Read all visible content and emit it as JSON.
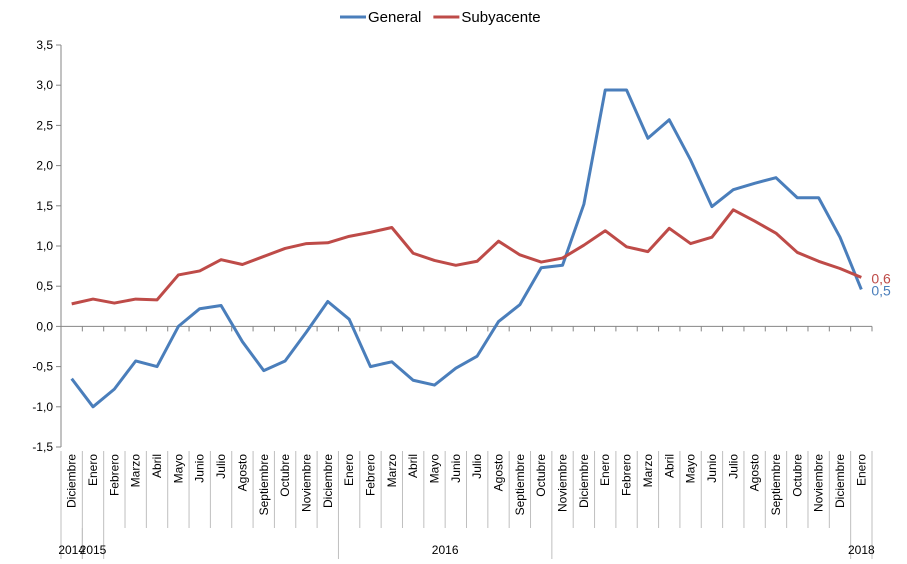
{
  "chart_data": {
    "type": "line",
    "categories": [
      "Diciembre",
      "Enero",
      "Febrero",
      "Marzo",
      "Abril",
      "Mayo",
      "Junio",
      "Julio",
      "Agosto",
      "Septiembre",
      "Octubre",
      "Noviembre",
      "Diciembre",
      "Enero",
      "Febrero",
      "Marzo",
      "Abril",
      "Mayo",
      "Junio",
      "Julio",
      "Agosto",
      "Septiembre",
      "Octubre",
      "Noviembre",
      "Diciembre",
      "Enero",
      "Febrero",
      "Marzo",
      "Abril",
      "Mayo",
      "Junio",
      "Julio",
      "Agosto",
      "Septiembre",
      "Octubre",
      "Noviembre",
      "Diciembre",
      "Enero"
    ],
    "year_groups": [
      {
        "label": "2014",
        "start": 0,
        "end": 0
      },
      {
        "label": "2015",
        "start": 1,
        "end": 1
      },
      {
        "label": "2016",
        "start": 13,
        "end": 22
      },
      {
        "label": "2018",
        "start": 37,
        "end": 37
      }
    ],
    "series": [
      {
        "name": "General",
        "color": "#4a7ebb",
        "values": [
          -0.65,
          -1.0,
          -0.78,
          -0.43,
          -0.5,
          0.0,
          0.22,
          0.26,
          -0.19,
          -0.55,
          -0.43,
          -0.07,
          0.31,
          0.09,
          -0.5,
          -0.44,
          -0.67,
          -0.73,
          -0.52,
          -0.37,
          0.06,
          0.27,
          0.73,
          0.76,
          1.52,
          2.94,
          2.94,
          2.34,
          2.57,
          2.07,
          1.49,
          1.7,
          1.78,
          1.85,
          1.6,
          1.6,
          1.11,
          0.46
        ],
        "value_labels": [
          null,
          null,
          null,
          null,
          null,
          null,
          null,
          null,
          null,
          null,
          null,
          null,
          null,
          null,
          null,
          null,
          null,
          null,
          null,
          null,
          null,
          null,
          null,
          null,
          null,
          null,
          null,
          null,
          null,
          null,
          null,
          null,
          null,
          null,
          null,
          null,
          null,
          "0,5"
        ]
      },
      {
        "name": "Subyacente",
        "color": "#be4b48",
        "values": [
          0.28,
          0.34,
          0.29,
          0.34,
          0.33,
          0.64,
          0.69,
          0.83,
          0.77,
          0.87,
          0.97,
          1.03,
          1.04,
          1.12,
          1.17,
          1.23,
          0.91,
          0.82,
          0.76,
          0.81,
          1.06,
          0.89,
          0.8,
          0.85,
          1.01,
          1.19,
          0.99,
          0.93,
          1.22,
          1.03,
          1.11,
          1.45,
          1.31,
          1.16,
          0.92,
          0.81,
          0.72,
          0.61
        ],
        "value_labels": [
          null,
          null,
          null,
          null,
          null,
          null,
          null,
          null,
          null,
          null,
          null,
          null,
          null,
          null,
          null,
          null,
          null,
          null,
          null,
          null,
          null,
          null,
          null,
          null,
          null,
          null,
          null,
          null,
          null,
          null,
          null,
          null,
          null,
          null,
          null,
          null,
          null,
          "0,6"
        ]
      }
    ],
    "ylim": [
      -1.5,
      3.5
    ],
    "yticks": [
      {
        "value": -1.5,
        "label": "-1,5"
      },
      {
        "value": -1.0,
        "label": "-1,0"
      },
      {
        "value": -0.5,
        "label": "-0,5"
      },
      {
        "value": 0,
        "label": "0,0"
      },
      {
        "value": 0.5,
        "label": "0,5"
      },
      {
        "value": 1.0,
        "label": "1,0"
      },
      {
        "value": 1.5,
        "label": "1,5"
      },
      {
        "value": 2.0,
        "label": "2,0"
      },
      {
        "value": 2.5,
        "label": "2,5"
      },
      {
        "value": 3.0,
        "label": "3,0"
      },
      {
        "value": 3.5,
        "label": "3,5"
      }
    ],
    "legend": "top"
  }
}
